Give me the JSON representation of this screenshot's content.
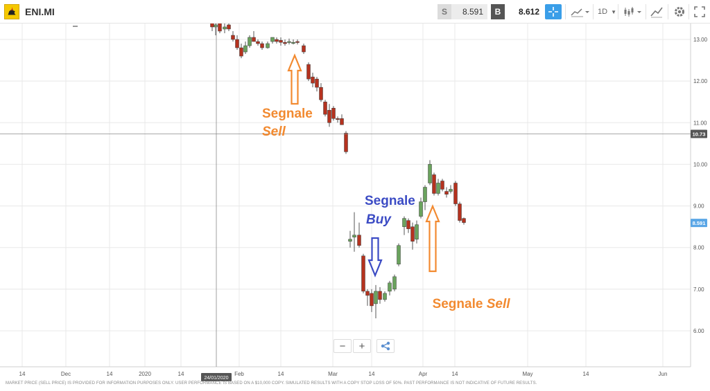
{
  "toolbar": {
    "symbol": "ENI.MI",
    "sell_tag": "S",
    "sell_price": "8.591",
    "buy_tag": "B",
    "buy_price": "8.612",
    "timeframe": "1D",
    "icons": [
      "eni-logo-icon",
      "crosshair-icon",
      "line-chart-icon",
      "candles-icon",
      "draw-icon",
      "settings-icon",
      "fullscreen-icon"
    ]
  },
  "chart_data": {
    "type": "candlestick",
    "x_ticks": [
      "14",
      "Dec",
      "14",
      "2020",
      "14",
      "Feb",
      "14",
      "Mar",
      "14",
      "Apr",
      "14",
      "May",
      "14",
      "Jun"
    ],
    "y_ticks": [
      "13.00",
      "12.00",
      "11.00",
      "10.00",
      "9.00",
      "8.00",
      "7.00",
      "6.00"
    ],
    "ylim": [
      5.5,
      13.4
    ],
    "crosshair_price": "10.73",
    "current_price": "8.591",
    "crosshair_date": "24/01/2020",
    "bull_color": "#6aa35d",
    "bear_color": "#b5321f",
    "candles": [
      {
        "x": 306,
        "o": 13.5,
        "h": 13.55,
        "l": 13.2,
        "c": 13.3
      },
      {
        "x": 311,
        "o": 13.3,
        "h": 13.45,
        "l": 13.1,
        "c": 13.35
      },
      {
        "x": 317,
        "o": 13.4,
        "h": 13.45,
        "l": 13.15,
        "c": 13.2
      },
      {
        "x": 324,
        "o": 13.25,
        "h": 13.4,
        "l": 13.15,
        "c": 13.3
      },
      {
        "x": 330,
        "o": 13.35,
        "h": 13.45,
        "l": 13.2,
        "c": 13.25
      },
      {
        "x": 336,
        "o": 13.1,
        "h": 13.2,
        "l": 12.95,
        "c": 13.0
      },
      {
        "x": 342,
        "o": 13.0,
        "h": 13.1,
        "l": 12.75,
        "c": 12.8
      },
      {
        "x": 348,
        "o": 12.8,
        "h": 12.9,
        "l": 12.55,
        "c": 12.6
      },
      {
        "x": 354,
        "o": 12.7,
        "h": 12.95,
        "l": 12.65,
        "c": 12.85
      },
      {
        "x": 360,
        "o": 12.85,
        "h": 13.1,
        "l": 12.8,
        "c": 13.05
      },
      {
        "x": 366,
        "o": 13.05,
        "h": 13.2,
        "l": 12.95,
        "c": 12.95
      },
      {
        "x": 372,
        "o": 12.95,
        "h": 13.0,
        "l": 12.85,
        "c": 12.9
      },
      {
        "x": 378,
        "o": 12.9,
        "h": 12.95,
        "l": 12.75,
        "c": 12.8
      },
      {
        "x": 386,
        "o": 12.8,
        "h": 12.95,
        "l": 12.78,
        "c": 12.9
      },
      {
        "x": 393,
        "o": 12.95,
        "h": 13.05,
        "l": 12.9,
        "c": 13.05
      },
      {
        "x": 399,
        "o": 13.0,
        "h": 13.05,
        "l": 12.9,
        "c": 12.95
      },
      {
        "x": 405,
        "o": 12.98,
        "h": 13.05,
        "l": 12.85,
        "c": 12.93
      },
      {
        "x": 411,
        "o": 12.93,
        "h": 13.0,
        "l": 12.85,
        "c": 12.9
      },
      {
        "x": 417,
        "o": 12.95,
        "h": 13.02,
        "l": 12.88,
        "c": 12.95
      },
      {
        "x": 423,
        "o": 12.93,
        "h": 13.0,
        "l": 12.88,
        "c": 12.93
      },
      {
        "x": 429,
        "o": 12.95,
        "h": 13.0,
        "l": 12.88,
        "c": 12.93
      },
      {
        "x": 438,
        "o": 12.85,
        "h": 12.9,
        "l": 12.65,
        "c": 12.7
      },
      {
        "x": 445,
        "o": 12.4,
        "h": 12.45,
        "l": 12.0,
        "c": 12.05
      },
      {
        "x": 451,
        "o": 12.1,
        "h": 12.2,
        "l": 11.85,
        "c": 11.95
      },
      {
        "x": 457,
        "o": 12.05,
        "h": 12.1,
        "l": 11.75,
        "c": 11.85
      },
      {
        "x": 463,
        "o": 11.85,
        "h": 11.95,
        "l": 11.5,
        "c": 11.55
      },
      {
        "x": 469,
        "o": 11.5,
        "h": 11.55,
        "l": 11.15,
        "c": 11.2
      },
      {
        "x": 475,
        "o": 11.3,
        "h": 11.45,
        "l": 10.9,
        "c": 11.0
      },
      {
        "x": 481,
        "o": 11.35,
        "h": 11.4,
        "l": 11.05,
        "c": 11.1
      },
      {
        "x": 487,
        "o": 11.1,
        "h": 11.15,
        "l": 11.0,
        "c": 11.08
      },
      {
        "x": 493,
        "o": 11.1,
        "h": 11.2,
        "l": 10.95,
        "c": 10.95
      },
      {
        "x": 499,
        "o": 10.75,
        "h": 10.8,
        "l": 10.25,
        "c": 10.3
      },
      {
        "x": 505,
        "o": 8.15,
        "h": 8.4,
        "l": 8.0,
        "c": 8.2
      },
      {
        "x": 511,
        "o": 8.25,
        "h": 8.85,
        "l": 7.9,
        "c": 8.3
      },
      {
        "x": 518,
        "o": 8.3,
        "h": 8.6,
        "l": 8.0,
        "c": 8.05
      },
      {
        "x": 524,
        "o": 7.8,
        "h": 7.85,
        "l": 6.9,
        "c": 6.95
      },
      {
        "x": 530,
        "o": 6.95,
        "h": 7.0,
        "l": 6.6,
        "c": 6.85
      },
      {
        "x": 536,
        "o": 6.9,
        "h": 7.0,
        "l": 6.45,
        "c": 6.6
      },
      {
        "x": 542,
        "o": 6.65,
        "h": 7.1,
        "l": 6.3,
        "c": 6.95
      },
      {
        "x": 548,
        "o": 6.95,
        "h": 7.05,
        "l": 6.65,
        "c": 6.75
      },
      {
        "x": 555,
        "o": 6.75,
        "h": 6.95,
        "l": 6.7,
        "c": 6.9
      },
      {
        "x": 562,
        "o": 6.95,
        "h": 7.2,
        "l": 6.85,
        "c": 7.15
      },
      {
        "x": 569,
        "o": 7.0,
        "h": 7.35,
        "l": 6.95,
        "c": 7.3
      },
      {
        "x": 575,
        "o": 7.6,
        "h": 8.1,
        "l": 7.55,
        "c": 8.05
      },
      {
        "x": 583,
        "o": 8.5,
        "h": 8.75,
        "l": 8.3,
        "c": 8.7
      },
      {
        "x": 589,
        "o": 8.65,
        "h": 8.7,
        "l": 8.35,
        "c": 8.45
      },
      {
        "x": 595,
        "o": 8.5,
        "h": 8.6,
        "l": 7.95,
        "c": 8.15
      },
      {
        "x": 601,
        "o": 8.2,
        "h": 8.65,
        "l": 8.1,
        "c": 8.55
      },
      {
        "x": 607,
        "o": 8.75,
        "h": 9.2,
        "l": 8.7,
        "c": 9.1
      },
      {
        "x": 613,
        "o": 9.1,
        "h": 9.5,
        "l": 8.9,
        "c": 9.45
      },
      {
        "x": 620,
        "o": 9.55,
        "h": 10.1,
        "l": 9.5,
        "c": 10.0
      },
      {
        "x": 626,
        "o": 9.75,
        "h": 9.8,
        "l": 9.25,
        "c": 9.3
      },
      {
        "x": 632,
        "o": 9.3,
        "h": 9.65,
        "l": 9.25,
        "c": 9.55
      },
      {
        "x": 638,
        "o": 9.6,
        "h": 9.65,
        "l": 9.35,
        "c": 9.4
      },
      {
        "x": 644,
        "o": 9.35,
        "h": 9.45,
        "l": 9.2,
        "c": 9.28
      },
      {
        "x": 650,
        "o": 9.35,
        "h": 9.5,
        "l": 9.3,
        "c": 9.4
      },
      {
        "x": 657,
        "o": 9.55,
        "h": 9.6,
        "l": 9.0,
        "c": 9.05
      },
      {
        "x": 663,
        "o": 9.05,
        "h": 9.1,
        "l": 8.6,
        "c": 8.65
      },
      {
        "x": 669,
        "o": 8.7,
        "h": 8.72,
        "l": 8.55,
        "c": 8.6
      }
    ]
  },
  "annotations": [
    {
      "id": "sell1",
      "line1": "Segnale",
      "line2": "Sell",
      "color": "#f28a30"
    },
    {
      "id": "buy",
      "line1": "Segnale",
      "line2": "Buy",
      "color": "#3b4bc4"
    },
    {
      "id": "sell2",
      "line1": "Segnale ",
      "line2": "Sell",
      "color": "#f28a30"
    }
  ],
  "zoom": {
    "minus": "−",
    "plus": "+"
  },
  "disclaimer": "MARKET PRICE (SELL PRICE) IS PROVIDED FOR INFORMATION PURPOSES ONLY. USER PERFORMANCE IS BASED ON A $10,000 COPY. SIMULATED RESULTS WITH A COPY STOP LOSS OF 50%. PAST PERFORMANCE IS NOT INDICATIVE OF FUTURE RESULTS."
}
